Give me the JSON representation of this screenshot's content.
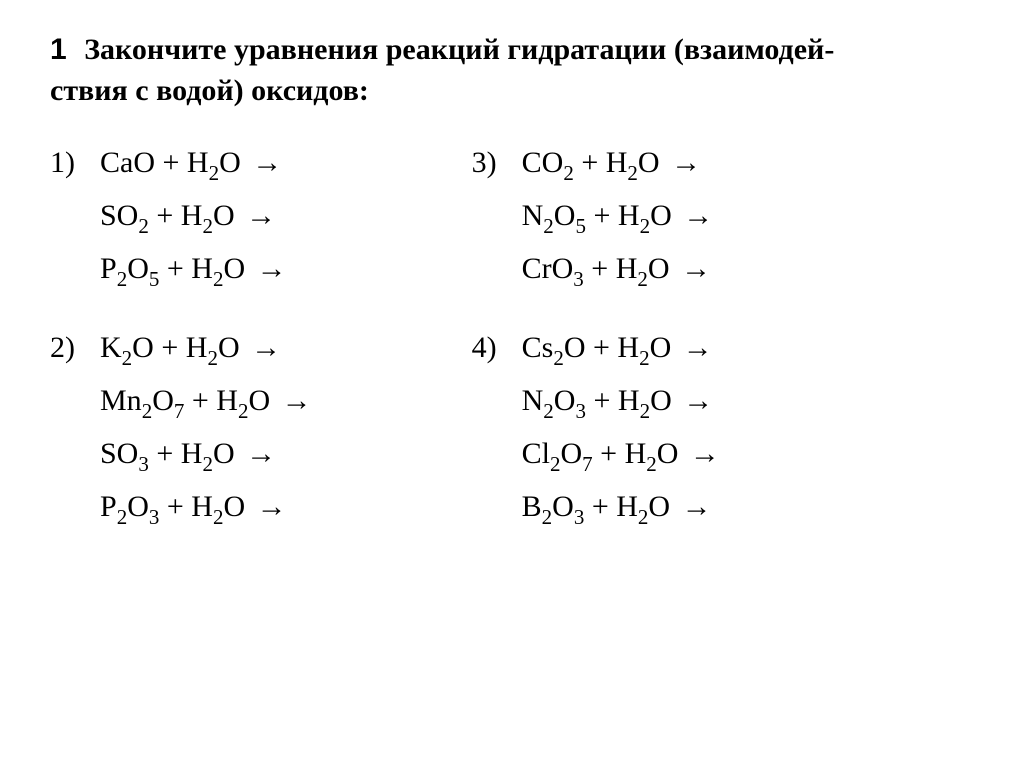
{
  "label": "1",
  "prompt_line1": "Закончите уравнения реакций гидратации (взаимодей-",
  "prompt_line2": "ствия с водой) оксидов:",
  "groups": [
    {
      "num": "1)",
      "eqs": [
        [
          [
            "CaO"
          ],
          " + ",
          [
            "H",
            "2",
            "O"
          ],
          " →"
        ],
        [
          [
            "SO",
            "2"
          ],
          " + ",
          [
            "H",
            "2",
            "O"
          ],
          " →"
        ],
        [
          [
            "P",
            "2",
            "O",
            "5"
          ],
          " + ",
          [
            "H",
            "2",
            "O"
          ],
          " →"
        ]
      ]
    },
    {
      "num": "2)",
      "eqs": [
        [
          [
            "K",
            "2",
            "O"
          ],
          " + ",
          [
            "H",
            "2",
            "O"
          ],
          " →"
        ],
        [
          [
            "Mn",
            "2",
            "O",
            "7"
          ],
          " + ",
          [
            "H",
            "2",
            "O"
          ],
          " →"
        ],
        [
          [
            "SO",
            "3"
          ],
          " + ",
          [
            "H",
            "2",
            "O"
          ],
          " →"
        ],
        [
          [
            "P",
            "2",
            "O",
            "3"
          ],
          " + ",
          [
            "H",
            "2",
            "O"
          ],
          " →"
        ]
      ]
    },
    {
      "num": "3)",
      "eqs": [
        [
          [
            "CO",
            "2"
          ],
          " + ",
          [
            "H",
            "2",
            "O"
          ],
          " →"
        ],
        [
          [
            "N",
            "2",
            "O",
            "5"
          ],
          " + ",
          [
            "H",
            "2",
            "O"
          ],
          " →"
        ],
        [
          [
            "CrO",
            "3"
          ],
          " + ",
          [
            "H",
            "2",
            "O"
          ],
          " →"
        ]
      ]
    },
    {
      "num": "4)",
      "eqs": [
        [
          [
            "Cs",
            "2",
            "O"
          ],
          " + ",
          [
            "H",
            "2",
            "O"
          ],
          " →"
        ],
        [
          [
            "N",
            "2",
            "O",
            "3"
          ],
          " + ",
          [
            "H",
            "2",
            "O"
          ],
          " →"
        ],
        [
          [
            "Cl",
            "2",
            "O",
            "7"
          ],
          " + ",
          [
            "H",
            "2",
            "O"
          ],
          " →"
        ],
        [
          [
            "B",
            "2",
            "O",
            "3"
          ],
          " + ",
          [
            "H",
            "2",
            "O"
          ],
          " →"
        ]
      ]
    }
  ],
  "layout": {
    "left_col_groups": [
      0,
      1
    ],
    "right_col_groups": [
      2,
      3
    ]
  },
  "style": {
    "page_bg": "#ffffff",
    "text_color": "#000000",
    "label_font": "Arial",
    "body_font": "Georgia",
    "prompt_fontsize": 30,
    "eq_fontsize": 30,
    "prompt_weight": 700,
    "eq_weight": 400
  }
}
